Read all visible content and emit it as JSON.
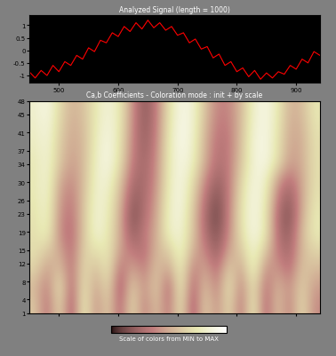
{
  "chart_data": [
    {
      "type": "line",
      "title": "Analyzed Signal (length = 1000)",
      "color": "#ff0000",
      "x": [
        450,
        460,
        470,
        480,
        490,
        500,
        510,
        520,
        530,
        540,
        550,
        560,
        570,
        580,
        590,
        600,
        610,
        620,
        630,
        640,
        650,
        660,
        670,
        680,
        690,
        700,
        710,
        720,
        730,
        740,
        750,
        760,
        770,
        780,
        790,
        800,
        810,
        820,
        830,
        840,
        850,
        860,
        870,
        880,
        890,
        900,
        910,
        920,
        930,
        940
      ],
      "values": [
        -0.85,
        -1.1,
        -0.8,
        -1.0,
        -0.6,
        -0.85,
        -0.45,
        -0.6,
        -0.2,
        -0.35,
        0.1,
        -0.05,
        0.4,
        0.3,
        0.7,
        0.55,
        0.95,
        0.75,
        1.1,
        0.85,
        1.2,
        0.9,
        1.1,
        0.8,
        0.95,
        0.6,
        0.7,
        0.3,
        0.45,
        0.05,
        0.15,
        -0.3,
        -0.15,
        -0.6,
        -0.45,
        -0.85,
        -0.7,
        -1.05,
        -0.8,
        -1.15,
        -0.9,
        -1.1,
        -0.85,
        -0.95,
        -0.6,
        -0.75,
        -0.35,
        -0.5,
        -0.05,
        -0.2
      ],
      "xlim": [
        450,
        940
      ],
      "ylim": [
        -1.3,
        1.4
      ],
      "xticks": [
        500,
        600,
        700,
        800,
        900
      ],
      "yticks": [
        -1,
        -0.5,
        0,
        0.5,
        1
      ]
    },
    {
      "type": "heatmap",
      "title": "Ca,b Coefficients - Coloration mode : init + by scale",
      "color": "pink",
      "tick_labels": "y",
      "xlim": [
        450,
        940
      ],
      "ylim": [
        1,
        48
      ],
      "xticks": [
        500,
        600,
        700,
        800,
        900
      ],
      "yticks": [
        1,
        4,
        8,
        12,
        15,
        19,
        23,
        26,
        30,
        34,
        37,
        41,
        45,
        48
      ],
      "color_range": [
        0,
        1
      ],
      "colorbar_label": "Scale of colors from MIN to MAX",
      "cells": [
        [
          0.6,
          0.3,
          0.7,
          0.2,
          0.8,
          0.4,
          0.65,
          0.25,
          0.7,
          0.35,
          0.6,
          0.3,
          0.75,
          0.2,
          0.65,
          0.4,
          0.7,
          0.3,
          0.8,
          0.25,
          0.6,
          0.35,
          0.7,
          0.4
        ],
        [
          0.55,
          0.35,
          0.75,
          0.25,
          0.75,
          0.45,
          0.7,
          0.2,
          0.65,
          0.4,
          0.65,
          0.25,
          0.8,
          0.25,
          0.6,
          0.35,
          0.75,
          0.35,
          0.75,
          0.3,
          0.55,
          0.4,
          0.65,
          0.45
        ],
        [
          0.65,
          0.45,
          0.6,
          0.3,
          0.7,
          0.55,
          0.75,
          0.3,
          0.5,
          0.35,
          0.6,
          0.45,
          0.8,
          0.35,
          0.5,
          0.3,
          0.65,
          0.45,
          0.85,
          0.4,
          0.45,
          0.3,
          0.6,
          0.55
        ],
        [
          0.7,
          0.6,
          0.5,
          0.3,
          0.65,
          0.7,
          0.75,
          0.45,
          0.35,
          0.3,
          0.55,
          0.6,
          0.85,
          0.5,
          0.4,
          0.2,
          0.5,
          0.6,
          0.85,
          0.6,
          0.35,
          0.25,
          0.55,
          0.65
        ],
        [
          0.7,
          0.8,
          0.4,
          0.3,
          0.6,
          0.85,
          0.75,
          0.5,
          0.2,
          0.35,
          0.5,
          0.8,
          0.85,
          0.6,
          0.3,
          0.15,
          0.4,
          0.7,
          0.9,
          0.75,
          0.3,
          0.2,
          0.55,
          0.75
        ],
        [
          0.72,
          0.82,
          0.42,
          0.32,
          0.6,
          0.85,
          0.78,
          0.5,
          0.15,
          0.3,
          0.48,
          0.8,
          0.88,
          0.6,
          0.28,
          0.1,
          0.38,
          0.72,
          0.9,
          0.75,
          0.28,
          0.15,
          0.5,
          0.75
        ],
        [
          0.74,
          0.84,
          0.45,
          0.35,
          0.58,
          0.84,
          0.8,
          0.55,
          0.2,
          0.28,
          0.45,
          0.78,
          0.9,
          0.65,
          0.32,
          0.15,
          0.36,
          0.7,
          0.9,
          0.78,
          0.35,
          0.2,
          0.48,
          0.72
        ],
        [
          0.75,
          0.85,
          0.5,
          0.4,
          0.56,
          0.82,
          0.85,
          0.6,
          0.28,
          0.26,
          0.42,
          0.76,
          0.9,
          0.7,
          0.4,
          0.22,
          0.35,
          0.66,
          0.88,
          0.82,
          0.45,
          0.3,
          0.48,
          0.7
        ],
        [
          0.75,
          0.85,
          0.6,
          0.45,
          0.55,
          0.8,
          0.9,
          0.7,
          0.35,
          0.25,
          0.4,
          0.75,
          0.9,
          0.8,
          0.5,
          0.3,
          0.35,
          0.6,
          0.85,
          0.9,
          0.7,
          0.45,
          0.5,
          0.7
        ],
        [
          0.78,
          0.86,
          0.62,
          0.48,
          0.55,
          0.78,
          0.9,
          0.72,
          0.38,
          0.22,
          0.38,
          0.74,
          0.92,
          0.82,
          0.52,
          0.32,
          0.34,
          0.58,
          0.86,
          0.9,
          0.72,
          0.48,
          0.5,
          0.7
        ],
        [
          0.8,
          0.88,
          0.65,
          0.5,
          0.56,
          0.76,
          0.88,
          0.74,
          0.4,
          0.2,
          0.36,
          0.72,
          0.92,
          0.84,
          0.55,
          0.35,
          0.36,
          0.56,
          0.84,
          0.9,
          0.74,
          0.5,
          0.52,
          0.72
        ],
        [
          0.82,
          0.9,
          0.68,
          0.52,
          0.58,
          0.75,
          0.86,
          0.75,
          0.42,
          0.18,
          0.35,
          0.7,
          0.9,
          0.85,
          0.58,
          0.38,
          0.38,
          0.55,
          0.82,
          0.9,
          0.76,
          0.52,
          0.55,
          0.74
        ]
      ]
    }
  ]
}
